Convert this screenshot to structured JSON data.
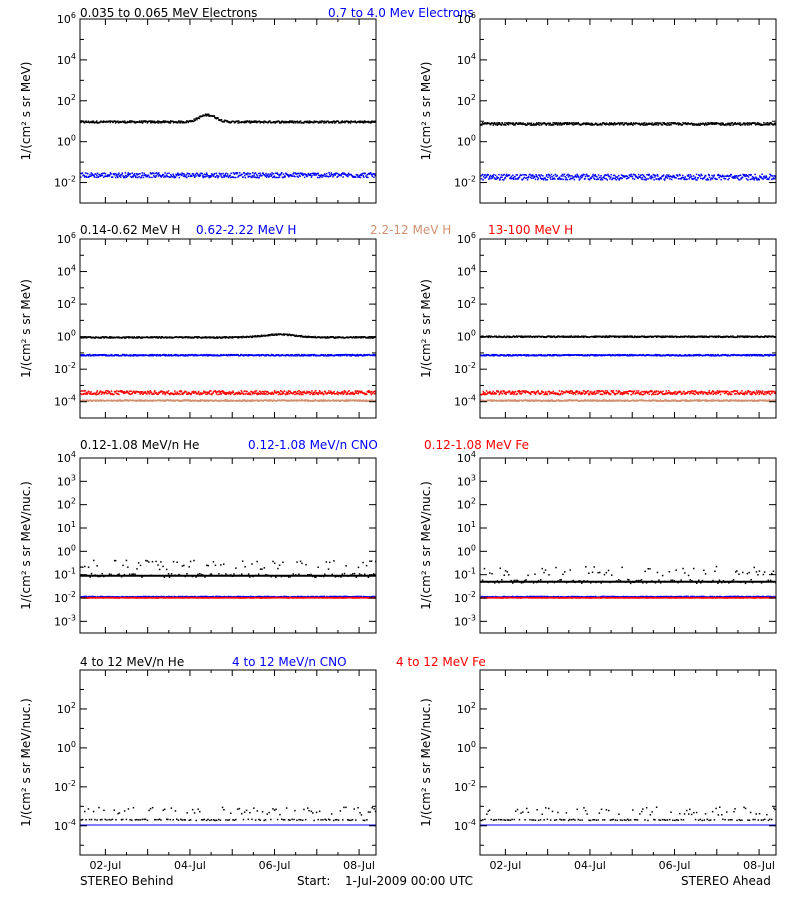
{
  "footer": {
    "left": "STEREO Behind",
    "center_label": "Start:",
    "center_value": "1-Jul-2009 00:00 UTC",
    "right": "STEREO Ahead"
  },
  "x_axis": {
    "range_days": [
      0.4,
      7.4
    ],
    "ticks": [
      {
        "day": 1,
        "label": "02-Jul"
      },
      {
        "day": 3,
        "label": "04-Jul"
      },
      {
        "day": 5,
        "label": "06-Jul"
      },
      {
        "day": 7,
        "label": "08-Jul"
      }
    ]
  },
  "chart_data": [
    {
      "type": "scatter",
      "name": "electrons",
      "ylabel": "1/(cm² s sr MeV)",
      "yscale": "log",
      "ylim_exp": [
        -3,
        6
      ],
      "ytick_exps": [
        -2,
        0,
        2,
        4,
        6
      ],
      "legend": [
        {
          "text": "0.035 to 0.065 MeV Electrons",
          "color": "#000000"
        },
        {
          "text": "0.7 to 4.0 Mev Electrons",
          "color": "#0000ff"
        }
      ],
      "series_behind": [
        {
          "name": "0.035 to 0.065 MeV Electrons",
          "color": "#000000",
          "base": 10,
          "spread": 0.05,
          "bump": {
            "day": 3.4,
            "width": 0.25,
            "factor": 2.2
          }
        },
        {
          "name": "0.7 to 4.0 Mev Electrons",
          "color": "#0000ff",
          "base": 0.025,
          "spread": 0.12
        }
      ],
      "series_ahead": [
        {
          "name": "0.035 to 0.065 MeV Electrons",
          "color": "#000000",
          "base": 8,
          "spread": 0.06
        },
        {
          "name": "0.7 to 4.0 Mev Electrons",
          "color": "#0000ff",
          "base": 0.02,
          "spread": 0.14
        }
      ]
    },
    {
      "type": "scatter",
      "name": "protons",
      "ylabel": "1/(cm² s sr MeV)",
      "yscale": "log",
      "ylim_exp": [
        -5,
        6
      ],
      "ytick_exps": [
        -4,
        -2,
        0,
        2,
        4,
        6
      ],
      "legend": [
        {
          "text": "0.14-0.62 MeV H",
          "color": "#000000"
        },
        {
          "text": "0.62-2.22 MeV H",
          "color": "#0000ff"
        },
        {
          "text": "2.2-12 MeV H",
          "color": "#d2906e"
        },
        {
          "text": "13-100 MeV H",
          "color": "#ff0000"
        }
      ],
      "series_behind": [
        {
          "name": "0.14-0.62 MeV H",
          "color": "#000000",
          "base": 1.0,
          "spread": 0.04,
          "bump": {
            "day": 5.1,
            "width": 0.5,
            "factor": 1.5
          }
        },
        {
          "name": "0.62-2.22 MeV H",
          "color": "#0000ff",
          "base": 0.08,
          "spread": 0.04
        },
        {
          "name": "13-100 MeV H",
          "color": "#ff0000",
          "base": 0.0004,
          "spread": 0.12
        },
        {
          "name": "2.2-12 MeV H",
          "color": "#d2906e",
          "base": 0.00013,
          "spread": 0.04
        }
      ],
      "series_ahead": [
        {
          "name": "0.14-0.62 MeV H",
          "color": "#000000",
          "base": 1.1,
          "spread": 0.04
        },
        {
          "name": "0.62-2.22 MeV H",
          "color": "#0000ff",
          "base": 0.08,
          "spread": 0.04
        },
        {
          "name": "13-100 MeV H",
          "color": "#ff0000",
          "base": 0.0004,
          "spread": 0.12
        },
        {
          "name": "2.2-12 MeV H",
          "color": "#d2906e",
          "base": 0.00013,
          "spread": 0.04
        }
      ]
    },
    {
      "type": "scatter",
      "name": "low-energy-ions",
      "ylabel": "1/(cm² s sr MeV/nuc.)",
      "yscale": "log",
      "ylim_exp": [
        -3.5,
        4
      ],
      "ytick_exps": [
        -3,
        -2,
        -1,
        0,
        1,
        2,
        3,
        4
      ],
      "legend": [
        {
          "text": "0.12-1.08 MeV/n He",
          "color": "#000000"
        },
        {
          "text": "0.12-1.08 MeV/n CNO",
          "color": "#0000ff"
        },
        {
          "text": "0.12-1.08 MeV Fe",
          "color": "#ff0000"
        }
      ],
      "series_behind": [
        {
          "name": "0.12-1.08 MeV/n He",
          "color": "#000000",
          "base": 0.1,
          "spread": 0.08,
          "sparse": true
        },
        {
          "name": "0.12-1.08 MeV/n CNO",
          "color": "#0000ff",
          "base": 0.012,
          "spread": 0.02
        },
        {
          "name": "0.12-1.08 MeV Fe",
          "color": "#ff0000",
          "base": 0.011,
          "spread": 0.01
        }
      ],
      "series_ahead": [
        {
          "name": "0.12-1.08 MeV/n He",
          "color": "#000000",
          "base": 0.055,
          "spread": 0.08,
          "sparse": true
        },
        {
          "name": "0.12-1.08 MeV/n CNO",
          "color": "#0000ff",
          "base": 0.012,
          "spread": 0.02
        },
        {
          "name": "0.12-1.08 MeV Fe",
          "color": "#ff0000",
          "base": 0.011,
          "spread": 0.01
        }
      ]
    },
    {
      "type": "scatter",
      "name": "high-energy-ions",
      "ylabel": "1/(cm² s sr MeV/nuc.)",
      "yscale": "log",
      "ylim_exp": [
        -5.5,
        4
      ],
      "ytick_exps": [
        -4,
        -2,
        0,
        2
      ],
      "legend": [
        {
          "text": "4 to 12 MeV/n He",
          "color": "#000000"
        },
        {
          "text": "4 to 12 MeV/n CNO",
          "color": "#0000ff"
        },
        {
          "text": "4 to 12 MeV Fe",
          "color": "#ff0000"
        }
      ],
      "series_behind": [
        {
          "name": "4 to 12 MeV/n He",
          "color": "#000000",
          "base": 0.00022,
          "spread": 0.03,
          "sparse": true
        },
        {
          "name": "4 to 12 MeV/n CNO",
          "color": "#0000ff",
          "base": 0.00011,
          "spread": 0.0,
          "line": true
        }
      ],
      "series_ahead": [
        {
          "name": "4 to 12 MeV/n He",
          "color": "#000000",
          "base": 0.00022,
          "spread": 0.03,
          "sparse": true
        },
        {
          "name": "4 to 12 MeV/n CNO",
          "color": "#0000ff",
          "base": 0.00011,
          "spread": 0.0,
          "line": true
        }
      ]
    }
  ]
}
